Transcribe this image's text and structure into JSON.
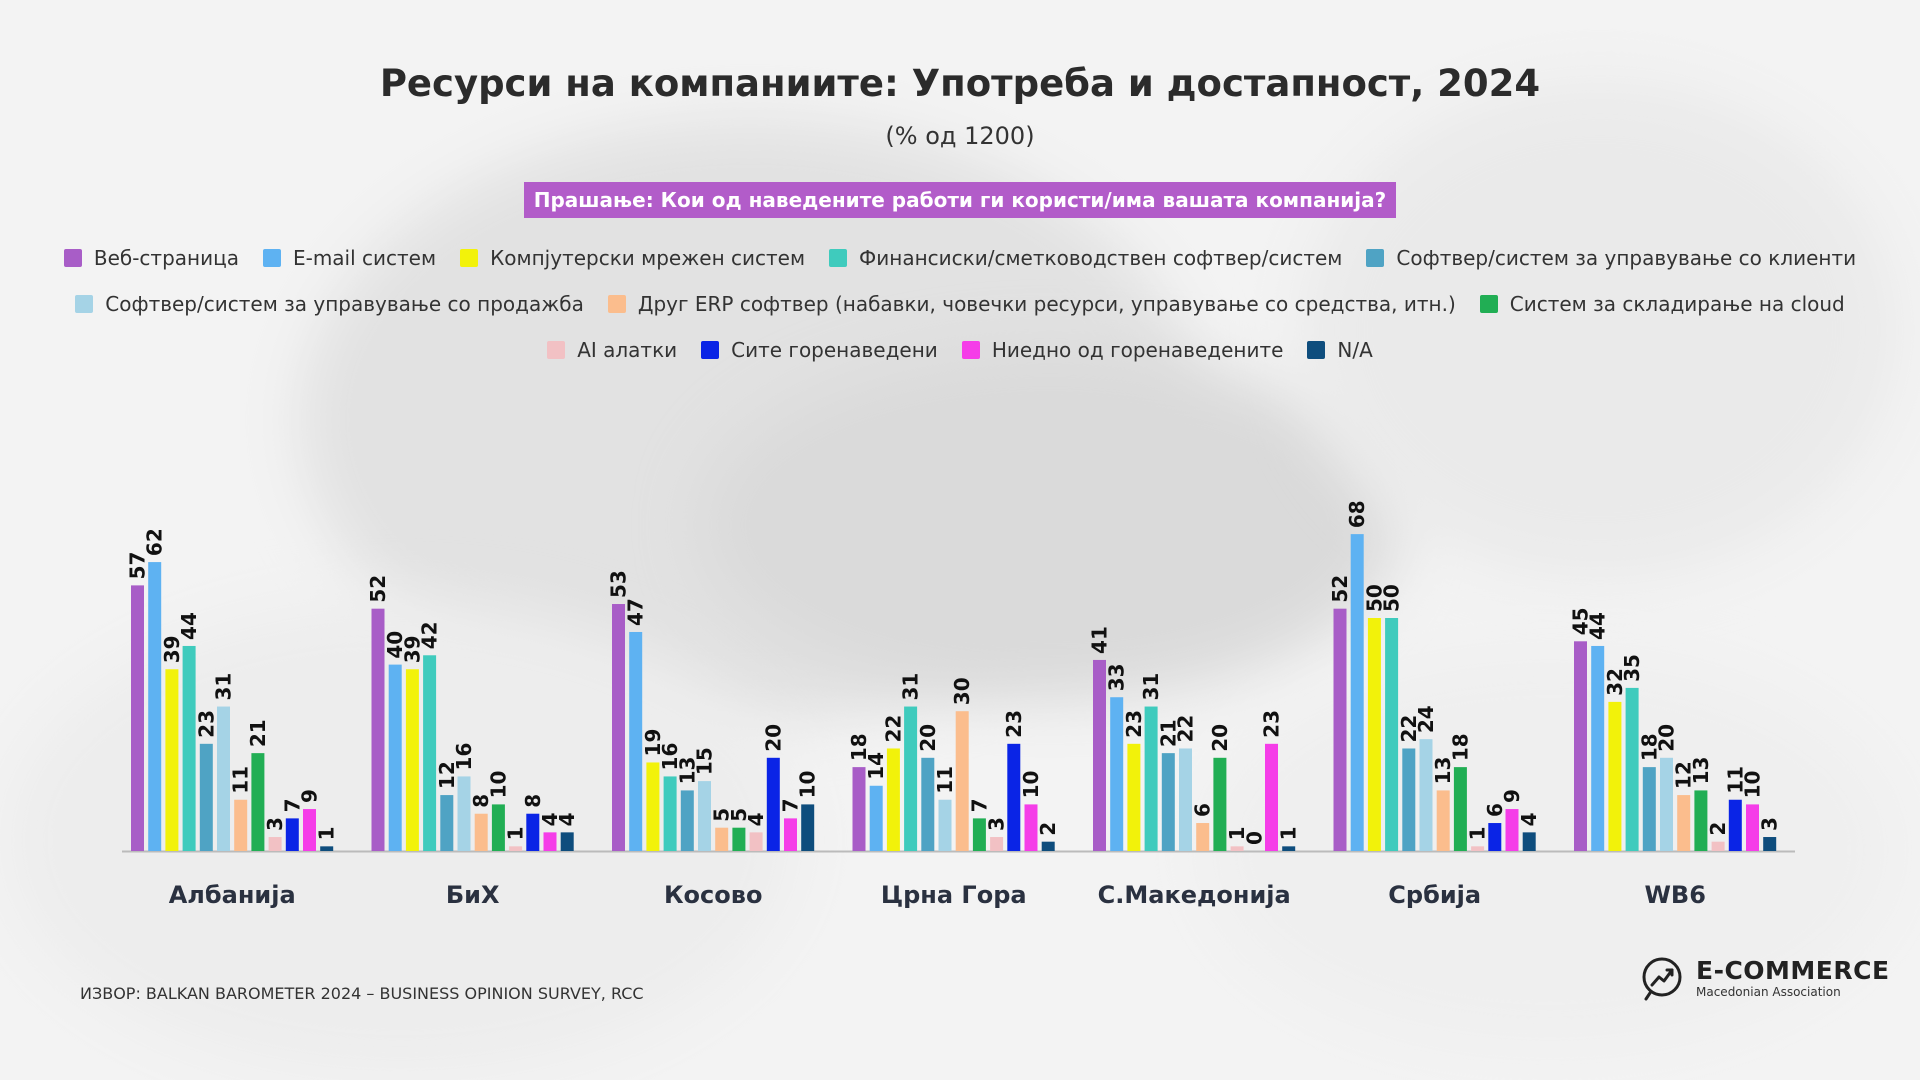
{
  "title": "Ресурси на компаниите: Употреба и достапност, 2024",
  "subtitle": "(% од 1200)",
  "question": "Прашање: Кои од наведените работи ги користи/има вашата компанија?",
  "source": "ИЗВОР: BALKAN BAROMETER 2024 – BUSINESS OPINION SURVEY, RCC",
  "logo": {
    "main": "E-COMMERCE",
    "sub": "Macedonian Association"
  },
  "chart_data": {
    "type": "bar",
    "title": "Ресурси на компаниите: Употреба и достапност, 2024",
    "subtitle": "(% од 1200)",
    "categories": [
      "Албанија",
      "БиХ",
      "Косово",
      "Црна Гора",
      "С.Македонија",
      "Србија",
      "WB6"
    ],
    "ylim": [
      0,
      70
    ],
    "grid": false,
    "legend_position": "top",
    "series": [
      {
        "name": "Веб-страница",
        "color": "#a85dc7",
        "values": [
          57,
          52,
          53,
          18,
          41,
          52,
          45
        ]
      },
      {
        "name": "E-mail систем",
        "color": "#5eb2f2",
        "values": [
          62,
          40,
          47,
          14,
          33,
          68,
          44
        ]
      },
      {
        "name": "Компјутерски мрежен систем",
        "color": "#f2f20a",
        "values": [
          39,
          39,
          19,
          22,
          23,
          50,
          32
        ]
      },
      {
        "name": "Финансиски/сметководствен софтвер/систем",
        "color": "#3fcbbd",
        "values": [
          44,
          42,
          16,
          31,
          31,
          50,
          35
        ]
      },
      {
        "name": "Софтвер/систем за управување со клиенти",
        "color": "#4fa3c4",
        "values": [
          23,
          12,
          13,
          20,
          21,
          22,
          18
        ]
      },
      {
        "name": "Софтвер/систем за управување со продажба",
        "color": "#a5d3e6",
        "values": [
          31,
          16,
          15,
          11,
          22,
          24,
          20
        ]
      },
      {
        "name": "Друг ERP софтвер (набавки, човечки ресурси, управување со средства, итн.)",
        "color": "#fbbd8d",
        "values": [
          11,
          8,
          5,
          30,
          6,
          13,
          12
        ]
      },
      {
        "name": "Систем за складирање на cloud",
        "color": "#21ae54",
        "values": [
          21,
          10,
          5,
          7,
          20,
          18,
          13
        ]
      },
      {
        "name": "AI алатки",
        "color": "#f2c1c4",
        "values": [
          3,
          1,
          4,
          3,
          1,
          1,
          2
        ]
      },
      {
        "name": "Сите горенаведени",
        "color": "#0a24e6",
        "values": [
          7,
          8,
          20,
          23,
          0,
          6,
          11
        ]
      },
      {
        "name": "Ниедно од горенаведените",
        "color": "#f53de8",
        "values": [
          9,
          4,
          7,
          10,
          23,
          9,
          10
        ]
      },
      {
        "name": "N/A",
        "color": "#0e4d7d",
        "values": [
          1,
          4,
          10,
          2,
          1,
          4,
          3
        ]
      }
    ]
  }
}
